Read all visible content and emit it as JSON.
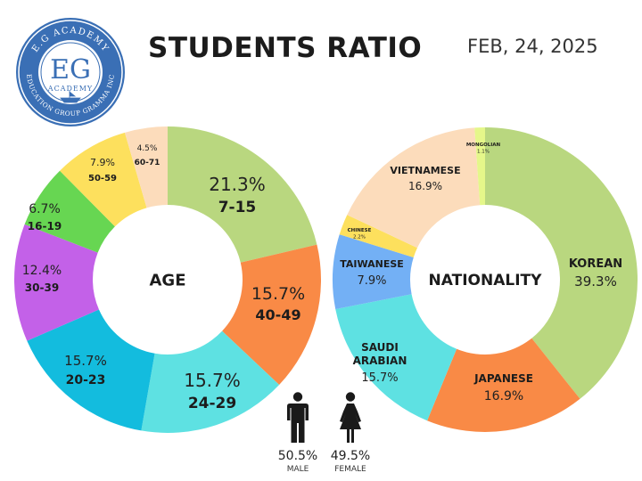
{
  "header": {
    "title": "STUDENTS RATIO",
    "date": "FEB, 24, 2025"
  },
  "logo": {
    "top_text": "E.G ACADEMY",
    "monogram": "EG",
    "sub_text": "ACADEMY",
    "bottom_text": "EDUCATION GROUP GRAMMA INC",
    "color": "#3a6fb5"
  },
  "gender": {
    "male": {
      "percent": "50.5%",
      "label": "MALE"
    },
    "female": {
      "percent": "49.5%",
      "label": "FEMALE"
    }
  },
  "chart_data": [
    {
      "type": "pie",
      "title": "AGE",
      "slices": [
        {
          "label": "7-15",
          "value_label": "21.3%",
          "value": 21.3,
          "color": "#b9d77f"
        },
        {
          "label": "40-49",
          "value_label": "15.7%",
          "value": 15.7,
          "color": "#f98a46"
        },
        {
          "label": "24-29",
          "value_label": "15.7%",
          "value": 15.7,
          "color": "#5ee1e2"
        },
        {
          "label": "20-23",
          "value_label": "15.7%",
          "value": 15.7,
          "color": "#13bcde"
        },
        {
          "label": "30-39",
          "value_label": "12.4%",
          "value": 12.4,
          "color": "#c361e8"
        },
        {
          "label": "16-19",
          "value_label": "6.7%",
          "value": 6.7,
          "color": "#67d652"
        },
        {
          "label": "50-59",
          "value_label": "7.9%",
          "value": 7.9,
          "color": "#fde05d"
        },
        {
          "label": "60-71",
          "value_label": "4.5%",
          "value": 4.5,
          "color": "#fcdcbb"
        }
      ]
    },
    {
      "type": "pie",
      "title": "NATIONALITY",
      "slices": [
        {
          "label": "KOREAN",
          "value_label": "39.3%",
          "value": 39.3,
          "color": "#b9d77f"
        },
        {
          "label": "JAPANESE",
          "value_label": "16.9%",
          "value": 16.9,
          "color": "#f98a46"
        },
        {
          "label": "SAUDI ARABIAN",
          "value_label": "15.7%",
          "value": 15.7,
          "color": "#5ee1e2"
        },
        {
          "label": "TAIWANESE",
          "value_label": "7.9%",
          "value": 7.9,
          "color": "#73b0f5"
        },
        {
          "label": "CHINESE",
          "value_label": "2.2%",
          "value": 2.2,
          "color": "#fde05d"
        },
        {
          "label": "VIETNAMESE",
          "value_label": "16.9%",
          "value": 16.9,
          "color": "#fcdcbb"
        },
        {
          "label": "MONGOLIAN",
          "value_label": "1.1%",
          "value": 1.1,
          "color": "#e5f78a"
        }
      ]
    }
  ]
}
